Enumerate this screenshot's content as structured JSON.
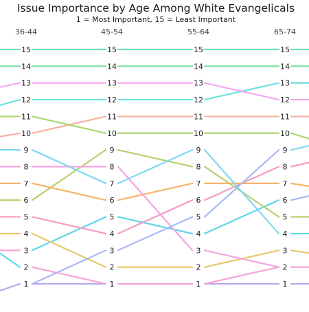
{
  "chart_data": {
    "type": "line",
    "subtype": "bump",
    "title": "Issue Importance by Age Among White Evangelicals",
    "subtitle": "1 = Most Important, 15 = Least Important",
    "categories": [
      "36-44",
      "45-54",
      "55-64",
      "65-74"
    ],
    "rank_labels": [
      "1",
      "2",
      "3",
      "4",
      "5",
      "6",
      "7",
      "8",
      "9",
      "10",
      "11",
      "12",
      "13",
      "14",
      "15"
    ],
    "ylim": [
      1,
      15
    ],
    "grid": false,
    "legend": "none",
    "series": [
      {
        "color": "#b7a6f0",
        "values": [
          1,
          1,
          1,
          1
        ]
      },
      {
        "color": "#f5a3d8",
        "values": [
          2,
          1,
          1,
          2
        ]
      },
      {
        "color": "#5ed6e8",
        "values": [
          3,
          5,
          4,
          6
        ]
      },
      {
        "color": "#e6c86a",
        "values": [
          4,
          2,
          2,
          3
        ]
      },
      {
        "color": "#f59ac0",
        "values": [
          5,
          4,
          6,
          8
        ]
      },
      {
        "color": "#b7cf6e",
        "values": [
          6,
          9,
          8,
          5
        ]
      },
      {
        "color": "#f5b468",
        "values": [
          7,
          6,
          7,
          7
        ]
      },
      {
        "color": "#f5a3e0",
        "values": [
          8,
          8,
          3,
          2
        ]
      },
      {
        "color": "#7fd8f0",
        "values": [
          9,
          7,
          9,
          4
        ]
      },
      {
        "color": "#f5b0a0",
        "values": [
          10,
          11,
          11,
          11
        ]
      },
      {
        "color": "#a9d86e",
        "values": [
          11,
          10,
          10,
          10
        ]
      },
      {
        "color": "#6ee0e0",
        "values": [
          12,
          12,
          12,
          13
        ]
      },
      {
        "color": "#f2a8f0",
        "values": [
          13,
          13,
          13,
          12
        ]
      },
      {
        "color": "#7ae0a0",
        "values": [
          14,
          14,
          14,
          14
        ]
      },
      {
        "color": "#6ee0b8",
        "values": [
          15,
          15,
          15,
          15
        ]
      },
      {
        "color": "#a8b8f5",
        "values": [
          1,
          3,
          5,
          9
        ]
      }
    ],
    "left_entry_colors": [
      "#b7a6f0",
      "#5ed6e8",
      "#f5a3d8",
      "#e6c86a",
      "#f59ac0",
      "#b7cf6e",
      "#f5b468",
      "#f5a3e0",
      "#7fd8f0",
      "#f5b0a0",
      "#a9d86e",
      "#6ee0e0",
      "#f2a8f0",
      "#7ae0a0",
      "#6ee0b8"
    ],
    "right_exit_colors": [
      "#b7a6f0",
      "#f5a3d8",
      "#e6c86a",
      "#5ed6e8",
      "#b7cf6e",
      "#a8b8f5",
      "#f5b468",
      "#f59ac0",
      "#7fd8f0",
      "#a9d86e",
      "#f5b0a0",
      "#f2a8f0",
      "#6ee0e0",
      "#7ae0a0",
      "#6ee0b8"
    ]
  }
}
